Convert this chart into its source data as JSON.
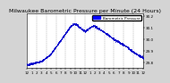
{
  "title": "Milwaukee Barometric Pressure per Minute (24 Hours)",
  "bg_color": "#d4d4d4",
  "plot_bg": "#ffffff",
  "dot_color": "#0000cc",
  "dot_size": 0.3,
  "legend_color": "#0000ff",
  "ylim": [
    29.75,
    30.22
  ],
  "xlim": [
    0,
    1440
  ],
  "yticks": [
    29.8,
    29.9,
    30.0,
    30.1,
    30.2
  ],
  "ytick_labels": [
    "29.8",
    "29.9",
    "30.0",
    "30.1",
    "30.2"
  ],
  "xtick_positions": [
    0,
    60,
    120,
    180,
    240,
    300,
    360,
    420,
    480,
    540,
    600,
    660,
    720,
    780,
    840,
    900,
    960,
    1020,
    1080,
    1140,
    1200,
    1260,
    1320,
    1380,
    1440
  ],
  "xtick_labels": [
    "12",
    "1",
    "2",
    "3",
    "4",
    "5",
    "6",
    "7",
    "8",
    "9",
    "10",
    "11",
    "12",
    "1",
    "2",
    "3",
    "4",
    "5",
    "6",
    "7",
    "8",
    "9",
    "10",
    "11",
    "12"
  ],
  "grid_color": "#999999",
  "grid_style": "--",
  "grid_positions": [
    120,
    240,
    360,
    480,
    600,
    720,
    840,
    960,
    1080,
    1200,
    1320
  ],
  "title_fontsize": 4.5,
  "tick_fontsize": 3.0,
  "legend_label": "Barometric Pressure",
  "legend_fontsize": 3.0
}
